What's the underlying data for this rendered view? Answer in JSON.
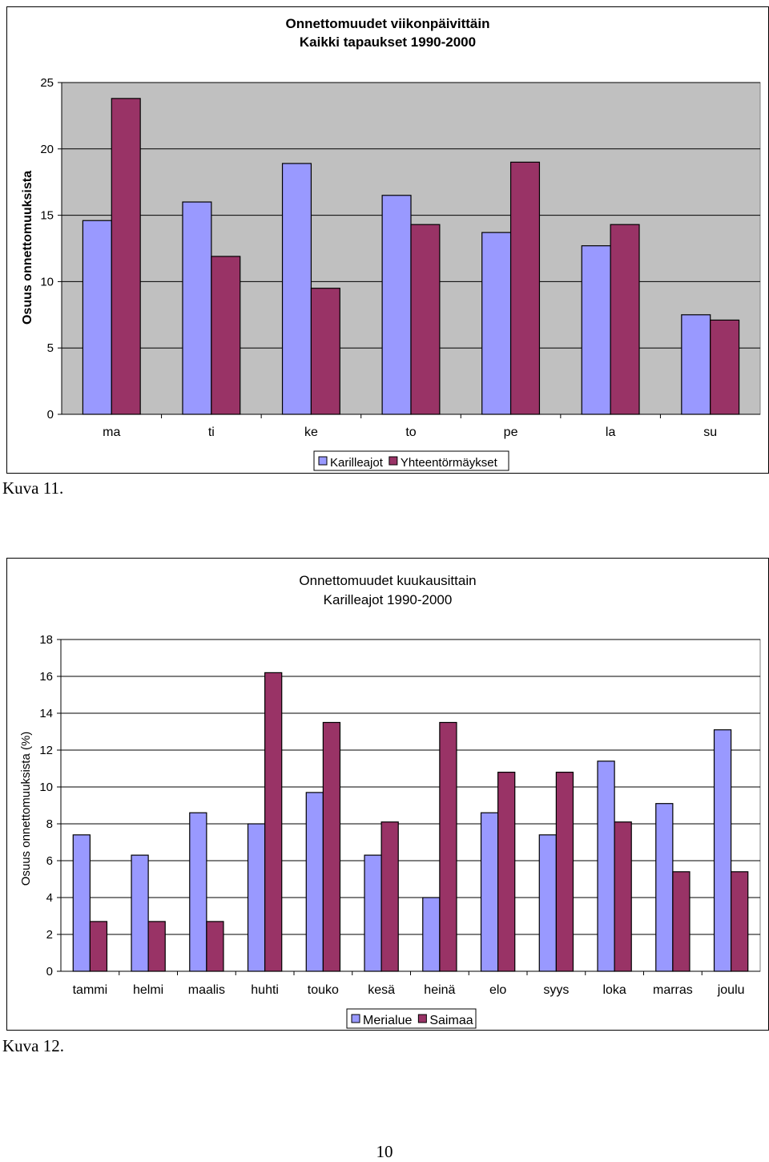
{
  "page_number": "10",
  "chart_data": [
    {
      "type": "bar",
      "caption": "Kuva 11.",
      "title": "Onnettomuudet viikonpäivittäin",
      "subtitle": "Kaikki tapaukset 1990-2000",
      "xlabel": "",
      "ylabel": "Osuus onnettomuuksista",
      "ylim": [
        0,
        25
      ],
      "yticks": [
        0,
        5,
        10,
        15,
        20,
        25
      ],
      "grid": true,
      "legend_position": "bottom",
      "categories": [
        "ma",
        "ti",
        "ke",
        "to",
        "pe",
        "la",
        "su"
      ],
      "series": [
        {
          "name": "Karilleajot",
          "color": "#9999FF",
          "values": [
            14.6,
            16.0,
            18.9,
            16.5,
            13.7,
            12.7,
            7.5
          ]
        },
        {
          "name": "Yhteentörmäykset",
          "color": "#993366",
          "values": [
            23.8,
            11.9,
            9.5,
            14.3,
            19.0,
            14.3,
            7.1
          ]
        }
      ]
    },
    {
      "type": "bar",
      "caption": "Kuva 12.",
      "title": "Onnettomuudet kuukausittain",
      "subtitle": "Karilleajot 1990-2000",
      "xlabel": "",
      "ylabel": "Osuus onnettomuuksista (%)",
      "ylim": [
        0,
        18
      ],
      "yticks": [
        0,
        2,
        4,
        6,
        8,
        10,
        12,
        14,
        16,
        18
      ],
      "grid": true,
      "legend_position": "bottom",
      "categories": [
        "tammi",
        "helmi",
        "maalis",
        "huhti",
        "touko",
        "kesä",
        "heinä",
        "elo",
        "syys",
        "loka",
        "marras",
        "joulu"
      ],
      "series": [
        {
          "name": "Merialue",
          "color": "#9999FF",
          "values": [
            7.4,
            6.3,
            8.6,
            8.0,
            9.7,
            6.3,
            4.0,
            8.6,
            7.4,
            11.4,
            9.1,
            13.1
          ]
        },
        {
          "name": "Saimaa",
          "color": "#993366",
          "values": [
            2.7,
            2.7,
            2.7,
            16.2,
            13.5,
            8.1,
            13.5,
            10.8,
            10.8,
            8.1,
            5.4,
            5.4
          ]
        }
      ]
    }
  ]
}
